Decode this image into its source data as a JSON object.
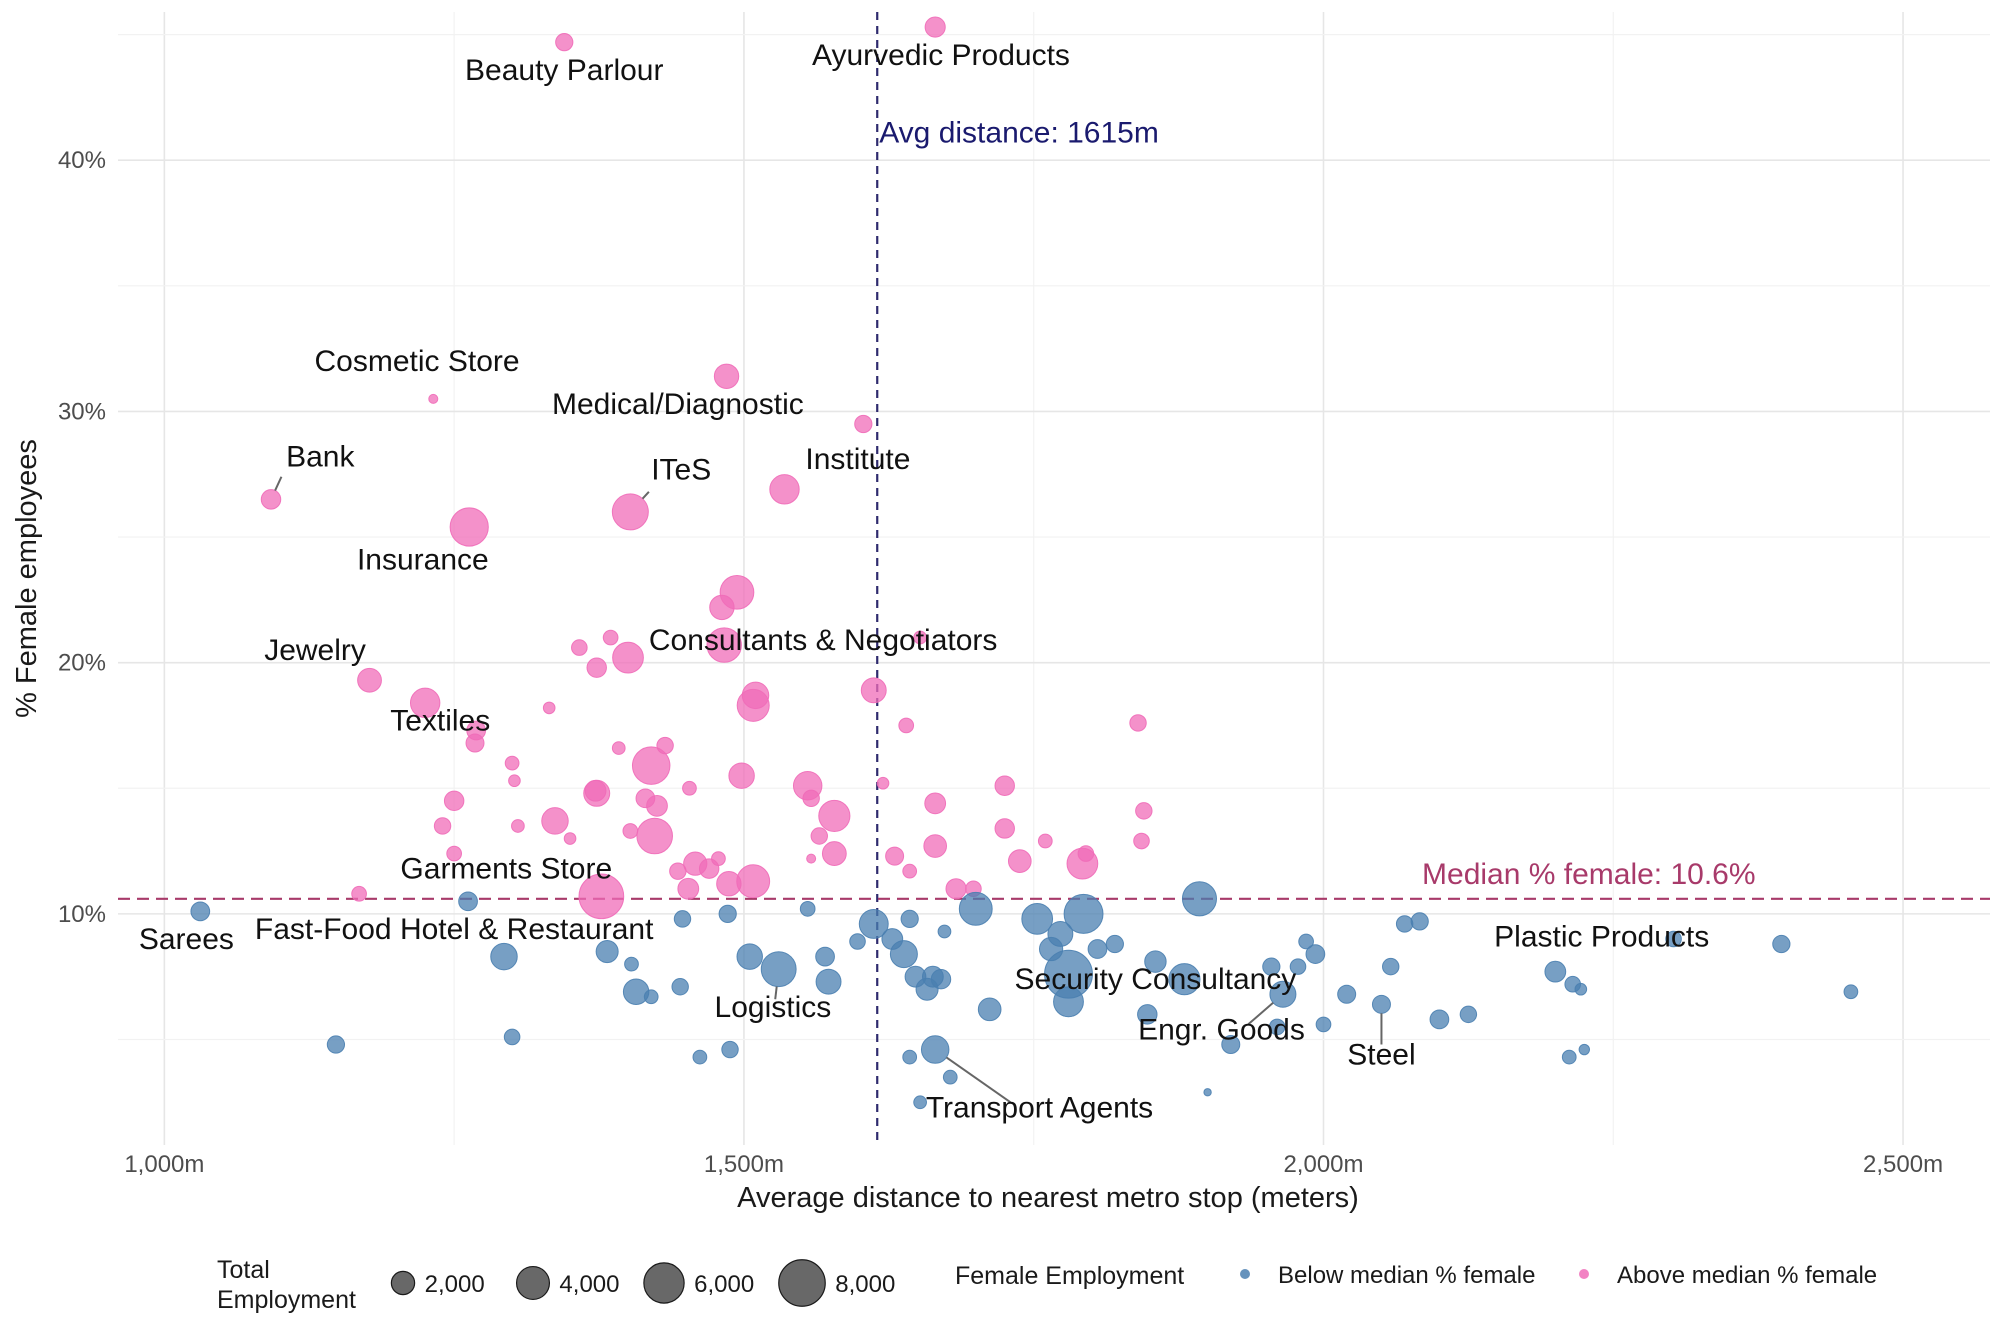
{
  "chart_data": {
    "type": "scatter",
    "title": "",
    "xlabel": "Average distance to nearest metro stop (meters)",
    "ylabel": "% Female employees",
    "xlim": [
      960,
      2575
    ],
    "ylim": [
      0.8,
      45.9
    ],
    "x_ticks": [
      1000,
      1500,
      2000,
      2500
    ],
    "x_tick_labels": [
      "1,000m",
      "1,500m",
      "2,000m",
      "2,500m"
    ],
    "y_ticks": [
      10,
      20,
      30,
      40
    ],
    "y_tick_labels": [
      "10%",
      "20%",
      "30%",
      "40%"
    ],
    "grid": true,
    "colors": {
      "below": "#4a7fb0",
      "above": "#f06cb8",
      "avg_line": "#2e2a6e",
      "median_line": "#a83a6a",
      "avg_text": "#1a1a6e",
      "median_text": "#a83a6a"
    },
    "reference_lines": {
      "avg_distance": {
        "value": 1615,
        "label": "Avg distance: 1615m"
      },
      "median_female": {
        "value": 10.6,
        "label": "Median % female: 10.6%"
      }
    },
    "series": [
      {
        "name": "Above median % female",
        "group": "above",
        "points": [
          {
            "x": 1345,
            "y": 44.7,
            "size": 1100,
            "label": "Beauty Parlour"
          },
          {
            "x": 1665,
            "y": 45.3,
            "size": 1500,
            "label": "Ayurvedic Products"
          },
          {
            "x": 1232,
            "y": 30.5,
            "size": 300,
            "label": "Cosmetic Store"
          },
          {
            "x": 1485,
            "y": 31.4,
            "size": 2200,
            "label": "Medical/Diagnostic"
          },
          {
            "x": 1092,
            "y": 26.5,
            "size": 1400,
            "label": "Bank"
          },
          {
            "x": 1402,
            "y": 26.0,
            "size": 4800,
            "label": "ITeS"
          },
          {
            "x": 1535,
            "y": 26.9,
            "size": 3200,
            "label": "Institute"
          },
          {
            "x": 1263,
            "y": 25.4,
            "size": 5400,
            "label": "Insurance"
          },
          {
            "x": 1400,
            "y": 20.2,
            "size": 3500,
            "label": "Consultants & Negotiators"
          },
          {
            "x": 1177,
            "y": 19.3,
            "size": 2100,
            "label": "Jewelry"
          },
          {
            "x": 1225,
            "y": 18.4,
            "size": 3200,
            "label": "Textiles"
          },
          {
            "x": 1423,
            "y": 13.1,
            "size": 4700,
            "label": "Garments Store"
          },
          {
            "x": 1603,
            "y": 29.5,
            "size": 1100,
            "label": ""
          },
          {
            "x": 1494,
            "y": 22.8,
            "size": 4200,
            "label": ""
          },
          {
            "x": 1481,
            "y": 22.2,
            "size": 2200,
            "label": ""
          },
          {
            "x": 1483,
            "y": 20.7,
            "size": 4400,
            "label": ""
          },
          {
            "x": 1358,
            "y": 20.6,
            "size": 900,
            "label": ""
          },
          {
            "x": 1385,
            "y": 21.0,
            "size": 800,
            "label": ""
          },
          {
            "x": 1373,
            "y": 19.8,
            "size": 1400,
            "label": ""
          },
          {
            "x": 1652,
            "y": 21.0,
            "size": 600,
            "label": ""
          },
          {
            "x": 1510,
            "y": 18.7,
            "size": 2600,
            "label": ""
          },
          {
            "x": 1508,
            "y": 18.3,
            "size": 3800,
            "label": ""
          },
          {
            "x": 1612,
            "y": 18.9,
            "size": 2300,
            "label": ""
          },
          {
            "x": 1332,
            "y": 18.2,
            "size": 500,
            "label": ""
          },
          {
            "x": 1640,
            "y": 17.5,
            "size": 800,
            "label": ""
          },
          {
            "x": 1840,
            "y": 17.6,
            "size": 1000,
            "label": ""
          },
          {
            "x": 1269,
            "y": 17.3,
            "size": 1300,
            "label": ""
          },
          {
            "x": 1268,
            "y": 16.8,
            "size": 1200,
            "label": ""
          },
          {
            "x": 1432,
            "y": 16.7,
            "size": 1000,
            "label": ""
          },
          {
            "x": 1392,
            "y": 16.6,
            "size": 600,
            "label": ""
          },
          {
            "x": 1300,
            "y": 16.0,
            "size": 700,
            "label": ""
          },
          {
            "x": 1420,
            "y": 15.9,
            "size": 5200,
            "label": ""
          },
          {
            "x": 1498,
            "y": 15.5,
            "size": 2400,
            "label": ""
          },
          {
            "x": 1302,
            "y": 15.3,
            "size": 500,
            "label": ""
          },
          {
            "x": 1555,
            "y": 15.1,
            "size": 3000,
            "label": ""
          },
          {
            "x": 1620,
            "y": 15.2,
            "size": 500,
            "label": ""
          },
          {
            "x": 1725,
            "y": 15.1,
            "size": 1400,
            "label": ""
          },
          {
            "x": 1453,
            "y": 15.0,
            "size": 700,
            "label": ""
          },
          {
            "x": 1373,
            "y": 14.8,
            "size": 2500,
            "label": ""
          },
          {
            "x": 1372,
            "y": 14.9,
            "size": 1600,
            "label": ""
          },
          {
            "x": 1415,
            "y": 14.6,
            "size": 1300,
            "label": ""
          },
          {
            "x": 1558,
            "y": 14.6,
            "size": 1000,
            "label": ""
          },
          {
            "x": 1425,
            "y": 14.3,
            "size": 1600,
            "label": ""
          },
          {
            "x": 1665,
            "y": 14.4,
            "size": 1600,
            "label": ""
          },
          {
            "x": 1250,
            "y": 14.5,
            "size": 1400,
            "label": ""
          },
          {
            "x": 1845,
            "y": 14.1,
            "size": 1000,
            "label": ""
          },
          {
            "x": 1337,
            "y": 13.7,
            "size": 2600,
            "label": ""
          },
          {
            "x": 1578,
            "y": 13.9,
            "size": 3600,
            "label": ""
          },
          {
            "x": 1240,
            "y": 13.5,
            "size": 1000,
            "label": ""
          },
          {
            "x": 1305,
            "y": 13.5,
            "size": 600,
            "label": ""
          },
          {
            "x": 1725,
            "y": 13.4,
            "size": 1400,
            "label": ""
          },
          {
            "x": 1402,
            "y": 13.3,
            "size": 800,
            "label": ""
          },
          {
            "x": 1565,
            "y": 13.1,
            "size": 1000,
            "label": ""
          },
          {
            "x": 1350,
            "y": 13.0,
            "size": 500,
            "label": ""
          },
          {
            "x": 1760,
            "y": 12.9,
            "size": 700,
            "label": ""
          },
          {
            "x": 1843,
            "y": 12.9,
            "size": 900,
            "label": ""
          },
          {
            "x": 1665,
            "y": 12.7,
            "size": 1900,
            "label": ""
          },
          {
            "x": 1578,
            "y": 12.4,
            "size": 2100,
            "label": ""
          },
          {
            "x": 1630,
            "y": 12.3,
            "size": 1200,
            "label": ""
          },
          {
            "x": 1795,
            "y": 12.4,
            "size": 900,
            "label": ""
          },
          {
            "x": 1250,
            "y": 12.4,
            "size": 800,
            "label": ""
          },
          {
            "x": 1558,
            "y": 12.2,
            "size": 300,
            "label": ""
          },
          {
            "x": 1478,
            "y": 12.2,
            "size": 700,
            "label": ""
          },
          {
            "x": 1458,
            "y": 12.0,
            "size": 2000,
            "label": ""
          },
          {
            "x": 1792,
            "y": 12.0,
            "size": 3500,
            "label": ""
          },
          {
            "x": 1738,
            "y": 12.1,
            "size": 1900,
            "label": ""
          },
          {
            "x": 1470,
            "y": 11.8,
            "size": 1400,
            "label": ""
          },
          {
            "x": 1443,
            "y": 11.7,
            "size": 1000,
            "label": ""
          },
          {
            "x": 1643,
            "y": 11.7,
            "size": 700,
            "label": ""
          },
          {
            "x": 1508,
            "y": 11.3,
            "size": 4000,
            "label": ""
          },
          {
            "x": 1487,
            "y": 11.2,
            "size": 2200,
            "label": ""
          },
          {
            "x": 1452,
            "y": 11.0,
            "size": 1600,
            "label": ""
          },
          {
            "x": 1683,
            "y": 11.0,
            "size": 1500,
            "label": ""
          },
          {
            "x": 1698,
            "y": 11.0,
            "size": 900,
            "label": ""
          },
          {
            "x": 1168,
            "y": 10.8,
            "size": 800,
            "label": ""
          },
          {
            "x": 1377,
            "y": 10.7,
            "size": 7400,
            "label": ""
          }
        ]
      },
      {
        "name": "Below median % female",
        "group": "below",
        "points": [
          {
            "x": 1031,
            "y": 10.1,
            "size": 1300,
            "label": "Sarees"
          },
          {
            "x": 1262,
            "y": 10.5,
            "size": 1300,
            "label": "Fast-Food Hotel & Restaurant"
          },
          {
            "x": 1665,
            "y": 4.6,
            "size": 2800,
            "label": "Transport Agents"
          },
          {
            "x": 1530,
            "y": 7.8,
            "size": 4500,
            "label": "Logistics"
          },
          {
            "x": 1780,
            "y": 7.6,
            "size": 8500,
            "label": "Security Consultancy"
          },
          {
            "x": 1965,
            "y": 6.8,
            "size": 2500,
            "label": "Engr. Goods"
          },
          {
            "x": 2050,
            "y": 6.4,
            "size": 1200,
            "label": "Steel"
          },
          {
            "x": 2200,
            "y": 7.7,
            "size": 1600,
            "label": "Plastic Products"
          },
          {
            "x": 1893,
            "y": 10.6,
            "size": 4300,
            "label": ""
          },
          {
            "x": 1700,
            "y": 10.2,
            "size": 4000,
            "label": ""
          },
          {
            "x": 1793,
            "y": 10.0,
            "size": 5600,
            "label": ""
          },
          {
            "x": 1753,
            "y": 9.8,
            "size": 3500,
            "label": ""
          },
          {
            "x": 1612,
            "y": 9.6,
            "size": 3100,
            "label": ""
          },
          {
            "x": 1486,
            "y": 10.0,
            "size": 1100,
            "label": ""
          },
          {
            "x": 1555,
            "y": 10.2,
            "size": 800,
            "label": ""
          },
          {
            "x": 1773,
            "y": 9.2,
            "size": 2300,
            "label": ""
          },
          {
            "x": 1765,
            "y": 8.6,
            "size": 2000,
            "label": ""
          },
          {
            "x": 1643,
            "y": 9.8,
            "size": 1100,
            "label": ""
          },
          {
            "x": 1673,
            "y": 9.3,
            "size": 600,
            "label": ""
          },
          {
            "x": 1447,
            "y": 9.8,
            "size": 1000,
            "label": ""
          },
          {
            "x": 1628,
            "y": 9.0,
            "size": 1600,
            "label": ""
          },
          {
            "x": 1598,
            "y": 8.9,
            "size": 900,
            "label": ""
          },
          {
            "x": 1805,
            "y": 8.6,
            "size": 1300,
            "label": ""
          },
          {
            "x": 1820,
            "y": 8.8,
            "size": 1100,
            "label": ""
          },
          {
            "x": 1638,
            "y": 8.4,
            "size": 2700,
            "label": ""
          },
          {
            "x": 1382,
            "y": 8.5,
            "size": 1800,
            "label": ""
          },
          {
            "x": 1505,
            "y": 8.3,
            "size": 2400,
            "label": ""
          },
          {
            "x": 1570,
            "y": 8.3,
            "size": 1300,
            "label": ""
          },
          {
            "x": 1293,
            "y": 8.3,
            "size": 2600,
            "label": ""
          },
          {
            "x": 1855,
            "y": 8.1,
            "size": 1700,
            "label": ""
          },
          {
            "x": 1993,
            "y": 8.4,
            "size": 1300,
            "label": ""
          },
          {
            "x": 1985,
            "y": 8.9,
            "size": 800,
            "label": ""
          },
          {
            "x": 1403,
            "y": 8.0,
            "size": 700,
            "label": ""
          },
          {
            "x": 1955,
            "y": 7.9,
            "size": 1100,
            "label": ""
          },
          {
            "x": 1978,
            "y": 7.9,
            "size": 900,
            "label": ""
          },
          {
            "x": 2058,
            "y": 7.9,
            "size": 1000,
            "label": ""
          },
          {
            "x": 1648,
            "y": 7.5,
            "size": 1600,
            "label": ""
          },
          {
            "x": 1663,
            "y": 7.5,
            "size": 1600,
            "label": ""
          },
          {
            "x": 1670,
            "y": 7.4,
            "size": 1400,
            "label": ""
          },
          {
            "x": 1573,
            "y": 7.3,
            "size": 2300,
            "label": ""
          },
          {
            "x": 1880,
            "y": 7.4,
            "size": 3600,
            "label": ""
          },
          {
            "x": 1658,
            "y": 7.0,
            "size": 1800,
            "label": ""
          },
          {
            "x": 1445,
            "y": 7.1,
            "size": 1000,
            "label": ""
          },
          {
            "x": 1407,
            "y": 6.9,
            "size": 2400,
            "label": ""
          },
          {
            "x": 1420,
            "y": 6.7,
            "size": 700,
            "label": ""
          },
          {
            "x": 2020,
            "y": 6.8,
            "size": 1200,
            "label": ""
          },
          {
            "x": 2215,
            "y": 7.2,
            "size": 900,
            "label": ""
          },
          {
            "x": 2222,
            "y": 7.0,
            "size": 500,
            "label": ""
          },
          {
            "x": 2395,
            "y": 8.8,
            "size": 1100,
            "label": ""
          },
          {
            "x": 2302,
            "y": 9.0,
            "size": 900,
            "label": ""
          },
          {
            "x": 2083,
            "y": 9.7,
            "size": 1100,
            "label": ""
          },
          {
            "x": 2070,
            "y": 9.6,
            "size": 1000,
            "label": ""
          },
          {
            "x": 2455,
            "y": 6.9,
            "size": 700,
            "label": ""
          },
          {
            "x": 1780,
            "y": 6.5,
            "size": 3300,
            "label": ""
          },
          {
            "x": 1712,
            "y": 6.2,
            "size": 1900,
            "label": ""
          },
          {
            "x": 1848,
            "y": 6.0,
            "size": 1400,
            "label": ""
          },
          {
            "x": 2100,
            "y": 5.8,
            "size": 1300,
            "label": ""
          },
          {
            "x": 2125,
            "y": 6.0,
            "size": 1000,
            "label": ""
          },
          {
            "x": 2000,
            "y": 5.6,
            "size": 800,
            "label": ""
          },
          {
            "x": 1960,
            "y": 5.5,
            "size": 900,
            "label": ""
          },
          {
            "x": 1148,
            "y": 4.8,
            "size": 1100,
            "label": ""
          },
          {
            "x": 1300,
            "y": 5.1,
            "size": 900,
            "label": ""
          },
          {
            "x": 1920,
            "y": 4.8,
            "size": 1200,
            "label": ""
          },
          {
            "x": 1488,
            "y": 4.6,
            "size": 1000,
            "label": ""
          },
          {
            "x": 1462,
            "y": 4.3,
            "size": 700,
            "label": ""
          },
          {
            "x": 1643,
            "y": 4.3,
            "size": 700,
            "label": ""
          },
          {
            "x": 2212,
            "y": 4.3,
            "size": 700,
            "label": ""
          },
          {
            "x": 2225,
            "y": 4.6,
            "size": 400,
            "label": ""
          },
          {
            "x": 1678,
            "y": 3.5,
            "size": 700,
            "label": ""
          },
          {
            "x": 1652,
            "y": 2.5,
            "size": 600,
            "label": ""
          },
          {
            "x": 1900,
            "y": 2.9,
            "size": 200,
            "label": ""
          }
        ]
      }
    ],
    "legend": {
      "size_title_line1": "Total",
      "size_title_line2": "Employment",
      "size_breaks": [
        2000,
        4000,
        6000,
        8000
      ],
      "size_labels": [
        "2,000",
        "4,000",
        "6,000",
        "8,000"
      ],
      "color_title": "Female Employment",
      "color_items": [
        {
          "key": "below",
          "label": "Below median % female"
        },
        {
          "key": "above",
          "label": "Above median % female"
        }
      ],
      "position": "bottom"
    }
  }
}
